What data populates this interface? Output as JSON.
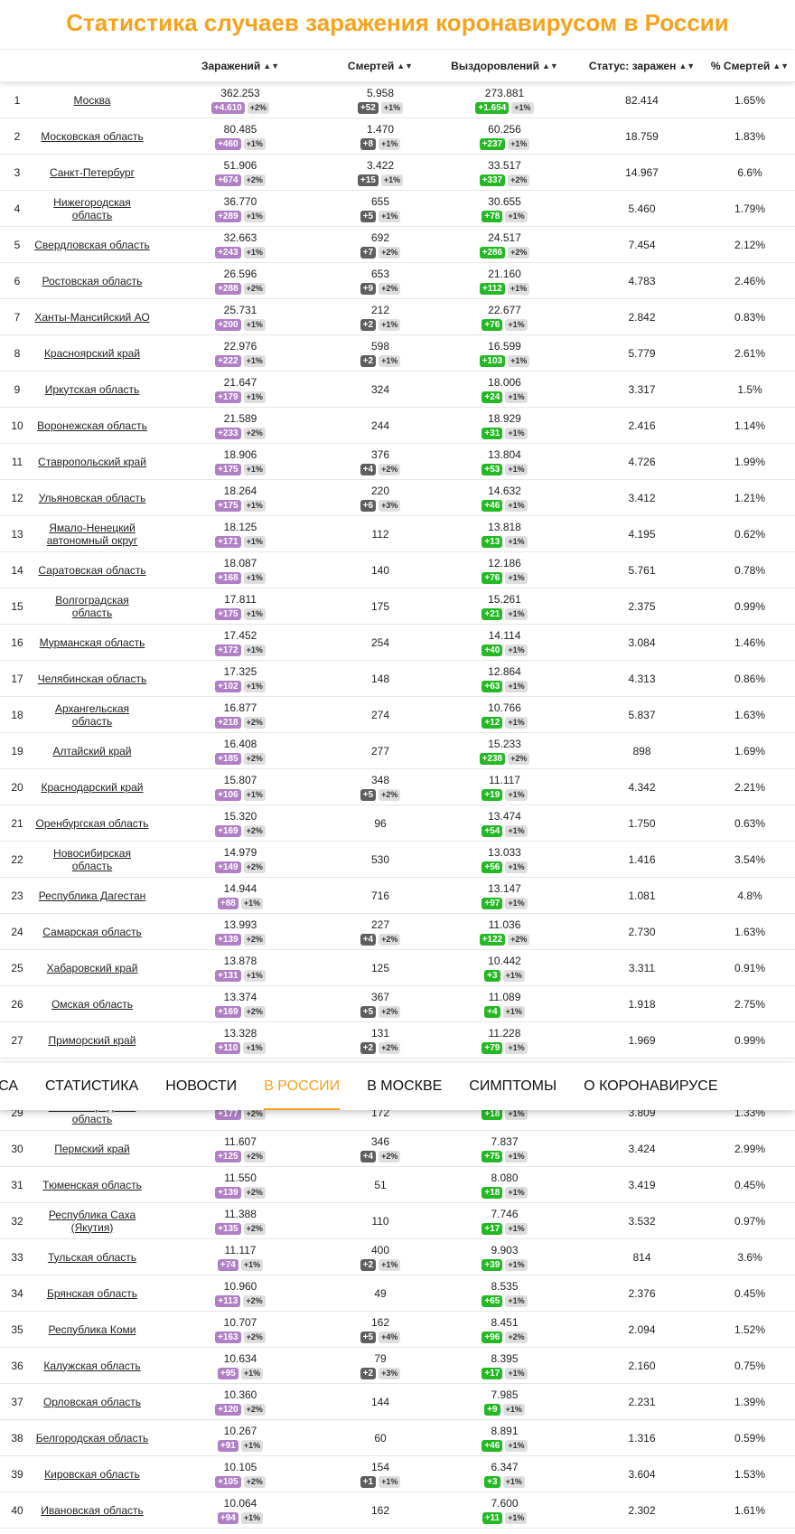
{
  "title": "Статистика случаев заражения коронавирусом в России",
  "columns": {
    "infected": "Заражений",
    "deaths": "Смертей",
    "recovered": "Выздоровлений",
    "active": "Статус: заражен",
    "death_rate": "% Смертей"
  },
  "nav": [
    "уса",
    "Статистика",
    "Новости",
    "В России",
    "В Москве",
    "Симптомы",
    "О коронавирусе"
  ],
  "nav_active": 3,
  "colors": {
    "accent": "#f7a21b",
    "infected_badge": "#b07fc6",
    "deaths_badge": "#5e5e5e",
    "recovered_badge": "#24b924",
    "percent_badge": "#dedede"
  },
  "icons": {
    "sort": "sort-arrows-icon"
  },
  "rows": [
    {
      "n": "1",
      "region": "Москва",
      "inf": "362.253",
      "inf_d": "+4.610",
      "inf_p": "+2%",
      "dth": "5.958",
      "dth_d": "+52",
      "dth_p": "+1%",
      "rec": "273.881",
      "rec_d": "+1.654",
      "rec_p": "+1%",
      "active": "82.414",
      "rate": "1.65%"
    },
    {
      "n": "2",
      "region": "Московская область",
      "inf": "80.485",
      "inf_d": "+460",
      "inf_p": "+1%",
      "dth": "1.470",
      "dth_d": "+8",
      "dth_p": "+1%",
      "rec": "60.256",
      "rec_d": "+237",
      "rec_p": "+1%",
      "active": "18.759",
      "rate": "1.83%"
    },
    {
      "n": "3",
      "region": "Санкт-Петербург",
      "inf": "51.906",
      "inf_d": "+674",
      "inf_p": "+2%",
      "dth": "3.422",
      "dth_d": "+15",
      "dth_p": "+1%",
      "rec": "33.517",
      "rec_d": "+337",
      "rec_p": "+2%",
      "active": "14.967",
      "rate": "6.6%"
    },
    {
      "n": "4",
      "region": "Нижегородская область",
      "inf": "36.770",
      "inf_d": "+289",
      "inf_p": "+1%",
      "dth": "655",
      "dth_d": "+5",
      "dth_p": "+1%",
      "rec": "30.655",
      "rec_d": "+78",
      "rec_p": "+1%",
      "active": "5.460",
      "rate": "1.79%"
    },
    {
      "n": "5",
      "region": "Свердловская область",
      "inf": "32.663",
      "inf_d": "+243",
      "inf_p": "+1%",
      "dth": "692",
      "dth_d": "+7",
      "dth_p": "+2%",
      "rec": "24.517",
      "rec_d": "+286",
      "rec_p": "+2%",
      "active": "7.454",
      "rate": "2.12%"
    },
    {
      "n": "6",
      "region": "Ростовская область",
      "inf": "26.596",
      "inf_d": "+288",
      "inf_p": "+2%",
      "dth": "653",
      "dth_d": "+9",
      "dth_p": "+2%",
      "rec": "21.160",
      "rec_d": "+112",
      "rec_p": "+1%",
      "active": "4.783",
      "rate": "2.46%"
    },
    {
      "n": "7",
      "region": "Ханты-Мансийский АО",
      "inf": "25.731",
      "inf_d": "+200",
      "inf_p": "+1%",
      "dth": "212",
      "dth_d": "+2",
      "dth_p": "+1%",
      "rec": "22.677",
      "rec_d": "+76",
      "rec_p": "+1%",
      "active": "2.842",
      "rate": "0.83%"
    },
    {
      "n": "8",
      "region": "Красноярский край",
      "inf": "22.976",
      "inf_d": "+222",
      "inf_p": "+1%",
      "dth": "598",
      "dth_d": "+2",
      "dth_p": "+1%",
      "rec": "16.599",
      "rec_d": "+103",
      "rec_p": "+1%",
      "active": "5.779",
      "rate": "2.61%"
    },
    {
      "n": "9",
      "region": "Иркутская область",
      "inf": "21.647",
      "inf_d": "+179",
      "inf_p": "+1%",
      "dth": "324",
      "dth_d": "",
      "dth_p": "",
      "rec": "18.006",
      "rec_d": "+24",
      "rec_p": "+1%",
      "active": "3.317",
      "rate": "1.5%"
    },
    {
      "n": "10",
      "region": "Воронежская область",
      "inf": "21.589",
      "inf_d": "+233",
      "inf_p": "+2%",
      "dth": "244",
      "dth_d": "",
      "dth_p": "",
      "rec": "18.929",
      "rec_d": "+31",
      "rec_p": "+1%",
      "active": "2.416",
      "rate": "1.14%"
    },
    {
      "n": "11",
      "region": "Ставропольский край",
      "inf": "18.906",
      "inf_d": "+175",
      "inf_p": "+1%",
      "dth": "376",
      "dth_d": "+4",
      "dth_p": "+2%",
      "rec": "13.804",
      "rec_d": "+53",
      "rec_p": "+1%",
      "active": "4.726",
      "rate": "1.99%"
    },
    {
      "n": "12",
      "region": "Ульяновская область",
      "inf": "18.264",
      "inf_d": "+175",
      "inf_p": "+1%",
      "dth": "220",
      "dth_d": "+6",
      "dth_p": "+3%",
      "rec": "14.632",
      "rec_d": "+46",
      "rec_p": "+1%",
      "active": "3.412",
      "rate": "1.21%"
    },
    {
      "n": "13",
      "region": "Ямало-Ненецкий автономный округ",
      "inf": "18.125",
      "inf_d": "+171",
      "inf_p": "+1%",
      "dth": "112",
      "dth_d": "",
      "dth_p": "",
      "rec": "13.818",
      "rec_d": "+13",
      "rec_p": "+1%",
      "active": "4.195",
      "rate": "0.62%"
    },
    {
      "n": "14",
      "region": "Саратовская область",
      "inf": "18.087",
      "inf_d": "+168",
      "inf_p": "+1%",
      "dth": "140",
      "dth_d": "",
      "dth_p": "",
      "rec": "12.186",
      "rec_d": "+76",
      "rec_p": "+1%",
      "active": "5.761",
      "rate": "0.78%"
    },
    {
      "n": "15",
      "region": "Волгоградская область",
      "inf": "17.811",
      "inf_d": "+175",
      "inf_p": "+1%",
      "dth": "175",
      "dth_d": "",
      "dth_p": "",
      "rec": "15.261",
      "rec_d": "+21",
      "rec_p": "+1%",
      "active": "2.375",
      "rate": "0.99%"
    },
    {
      "n": "16",
      "region": "Мурманская область",
      "inf": "17.452",
      "inf_d": "+172",
      "inf_p": "+1%",
      "dth": "254",
      "dth_d": "",
      "dth_p": "",
      "rec": "14.114",
      "rec_d": "+40",
      "rec_p": "+1%",
      "active": "3.084",
      "rate": "1.46%"
    },
    {
      "n": "17",
      "region": "Челябинская область",
      "inf": "17.325",
      "inf_d": "+102",
      "inf_p": "+1%",
      "dth": "148",
      "dth_d": "",
      "dth_p": "",
      "rec": "12.864",
      "rec_d": "+63",
      "rec_p": "+1%",
      "active": "4.313",
      "rate": "0.86%"
    },
    {
      "n": "18",
      "region": "Архангельская область",
      "inf": "16.877",
      "inf_d": "+218",
      "inf_p": "+2%",
      "dth": "274",
      "dth_d": "",
      "dth_p": "",
      "rec": "10.766",
      "rec_d": "+12",
      "rec_p": "+1%",
      "active": "5.837",
      "rate": "1.63%"
    },
    {
      "n": "19",
      "region": "Алтайский край",
      "inf": "16.408",
      "inf_d": "+185",
      "inf_p": "+2%",
      "dth": "277",
      "dth_d": "",
      "dth_p": "",
      "rec": "15.233",
      "rec_d": "+238",
      "rec_p": "+2%",
      "active": "898",
      "rate": "1.69%"
    },
    {
      "n": "20",
      "region": "Краснодарский край",
      "inf": "15.807",
      "inf_d": "+106",
      "inf_p": "+1%",
      "dth": "348",
      "dth_d": "+5",
      "dth_p": "+2%",
      "rec": "11.117",
      "rec_d": "+19",
      "rec_p": "+1%",
      "active": "4.342",
      "rate": "2.21%"
    },
    {
      "n": "21",
      "region": "Оренбургская область",
      "inf": "15.320",
      "inf_d": "+169",
      "inf_p": "+2%",
      "dth": "96",
      "dth_d": "",
      "dth_p": "",
      "rec": "13.474",
      "rec_d": "+54",
      "rec_p": "+1%",
      "active": "1.750",
      "rate": "0.63%"
    },
    {
      "n": "22",
      "region": "Новосибирская область",
      "inf": "14.979",
      "inf_d": "+149",
      "inf_p": "+2%",
      "dth": "530",
      "dth_d": "",
      "dth_p": "",
      "rec": "13.033",
      "rec_d": "+56",
      "rec_p": "+1%",
      "active": "1.416",
      "rate": "3.54%"
    },
    {
      "n": "23",
      "region": "Республика Дагестан",
      "inf": "14.944",
      "inf_d": "+88",
      "inf_p": "+1%",
      "dth": "716",
      "dth_d": "",
      "dth_p": "",
      "rec": "13.147",
      "rec_d": "+97",
      "rec_p": "+1%",
      "active": "1.081",
      "rate": "4.8%"
    },
    {
      "n": "24",
      "region": "Самарская область",
      "inf": "13.993",
      "inf_d": "+139",
      "inf_p": "+2%",
      "dth": "227",
      "dth_d": "+4",
      "dth_p": "+2%",
      "rec": "11.036",
      "rec_d": "+122",
      "rec_p": "+2%",
      "active": "2.730",
      "rate": "1.63%"
    },
    {
      "n": "25",
      "region": "Хабаровский край",
      "inf": "13.878",
      "inf_d": "+131",
      "inf_p": "+1%",
      "dth": "125",
      "dth_d": "",
      "dth_p": "",
      "rec": "10.442",
      "rec_d": "+3",
      "rec_p": "+1%",
      "active": "3.311",
      "rate": "0.91%"
    },
    {
      "n": "26",
      "region": "Омская область",
      "inf": "13.374",
      "inf_d": "+169",
      "inf_p": "+2%",
      "dth": "367",
      "dth_d": "+5",
      "dth_p": "+2%",
      "rec": "11.089",
      "rec_d": "+4",
      "rec_p": "+1%",
      "active": "1.918",
      "rate": "2.75%"
    },
    {
      "n": "27",
      "region": "Приморский край",
      "inf": "13.328",
      "inf_d": "+110",
      "inf_p": "+1%",
      "dth": "131",
      "dth_d": "+2",
      "dth_p": "+2%",
      "rec": "11.228",
      "rec_d": "+79",
      "rec_p": "+1%",
      "active": "1.969",
      "rate": "0.99%"
    },
    {
      "n": "28",
      "region": "",
      "inf": "",
      "inf_d": "",
      "inf_p": "",
      "dth": "",
      "dth_d": "",
      "dth_p": "",
      "rec": "",
      "rec_d": "",
      "rec_p": "",
      "active": "",
      "rate": ""
    },
    {
      "n": "29",
      "region": "Калининградская область",
      "inf": "",
      "inf_d": "+177",
      "inf_p": "+2%",
      "dth": "172",
      "dth_d": "",
      "dth_p": "",
      "rec": "",
      "rec_d": "+18",
      "rec_p": "+1%",
      "active": "3.809",
      "rate": "1.33%"
    },
    {
      "n": "30",
      "region": "Пермский край",
      "inf": "11.607",
      "inf_d": "+125",
      "inf_p": "+2%",
      "dth": "346",
      "dth_d": "+4",
      "dth_p": "+2%",
      "rec": "7.837",
      "rec_d": "+75",
      "rec_p": "+1%",
      "active": "3.424",
      "rate": "2.99%"
    },
    {
      "n": "31",
      "region": "Тюменская область",
      "inf": "11.550",
      "inf_d": "+139",
      "inf_p": "+2%",
      "dth": "51",
      "dth_d": "",
      "dth_p": "",
      "rec": "8.080",
      "rec_d": "+18",
      "rec_p": "+1%",
      "active": "3.419",
      "rate": "0.45%"
    },
    {
      "n": "32",
      "region": "Республика Саха (Якутия)",
      "inf": "11.388",
      "inf_d": "+135",
      "inf_p": "+2%",
      "dth": "110",
      "dth_d": "",
      "dth_p": "",
      "rec": "7.746",
      "rec_d": "+17",
      "rec_p": "+1%",
      "active": "3.532",
      "rate": "0.97%"
    },
    {
      "n": "33",
      "region": "Тульская область",
      "inf": "11.117",
      "inf_d": "+74",
      "inf_p": "+1%",
      "dth": "400",
      "dth_d": "+2",
      "dth_p": "+1%",
      "rec": "9.903",
      "rec_d": "+39",
      "rec_p": "+1%",
      "active": "814",
      "rate": "3.6%"
    },
    {
      "n": "34",
      "region": "Брянская область",
      "inf": "10.960",
      "inf_d": "+113",
      "inf_p": "+2%",
      "dth": "49",
      "dth_d": "",
      "dth_p": "",
      "rec": "8.535",
      "rec_d": "+65",
      "rec_p": "+1%",
      "active": "2.376",
      "rate": "0.45%"
    },
    {
      "n": "35",
      "region": "Республика Коми",
      "inf": "10.707",
      "inf_d": "+163",
      "inf_p": "+2%",
      "dth": "162",
      "dth_d": "+5",
      "dth_p": "+4%",
      "rec": "8.451",
      "rec_d": "+96",
      "rec_p": "+2%",
      "active": "2.094",
      "rate": "1.52%"
    },
    {
      "n": "36",
      "region": "Калужская область",
      "inf": "10.634",
      "inf_d": "+95",
      "inf_p": "+1%",
      "dth": "79",
      "dth_d": "+2",
      "dth_p": "+3%",
      "rec": "8.395",
      "rec_d": "+17",
      "rec_p": "+1%",
      "active": "2.160",
      "rate": "0.75%"
    },
    {
      "n": "37",
      "region": "Орловская область",
      "inf": "10.360",
      "inf_d": "+120",
      "inf_p": "+2%",
      "dth": "144",
      "dth_d": "",
      "dth_p": "",
      "rec": "7.985",
      "rec_d": "+9",
      "rec_p": "+1%",
      "active": "2.231",
      "rate": "1.39%"
    },
    {
      "n": "38",
      "region": "Белгородская область",
      "inf": "10.267",
      "inf_d": "+91",
      "inf_p": "+1%",
      "dth": "60",
      "dth_d": "",
      "dth_p": "",
      "rec": "8.891",
      "rec_d": "+46",
      "rec_p": "+1%",
      "active": "1.316",
      "rate": "0.59%"
    },
    {
      "n": "39",
      "region": "Кировская область",
      "inf": "10.105",
      "inf_d": "+105",
      "inf_p": "+2%",
      "dth": "154",
      "dth_d": "+1",
      "dth_p": "+1%",
      "rec": "6.347",
      "rec_d": "+3",
      "rec_p": "+1%",
      "active": "3.604",
      "rate": "1.53%"
    },
    {
      "n": "40",
      "region": "Ивановская область",
      "inf": "10.064",
      "inf_d": "+94",
      "inf_p": "+1%",
      "dth": "162",
      "dth_d": "",
      "dth_p": "",
      "rec": "7.600",
      "rec_d": "+11",
      "rec_p": "+1%",
      "active": "2.302",
      "rate": "1.61%"
    }
  ]
}
